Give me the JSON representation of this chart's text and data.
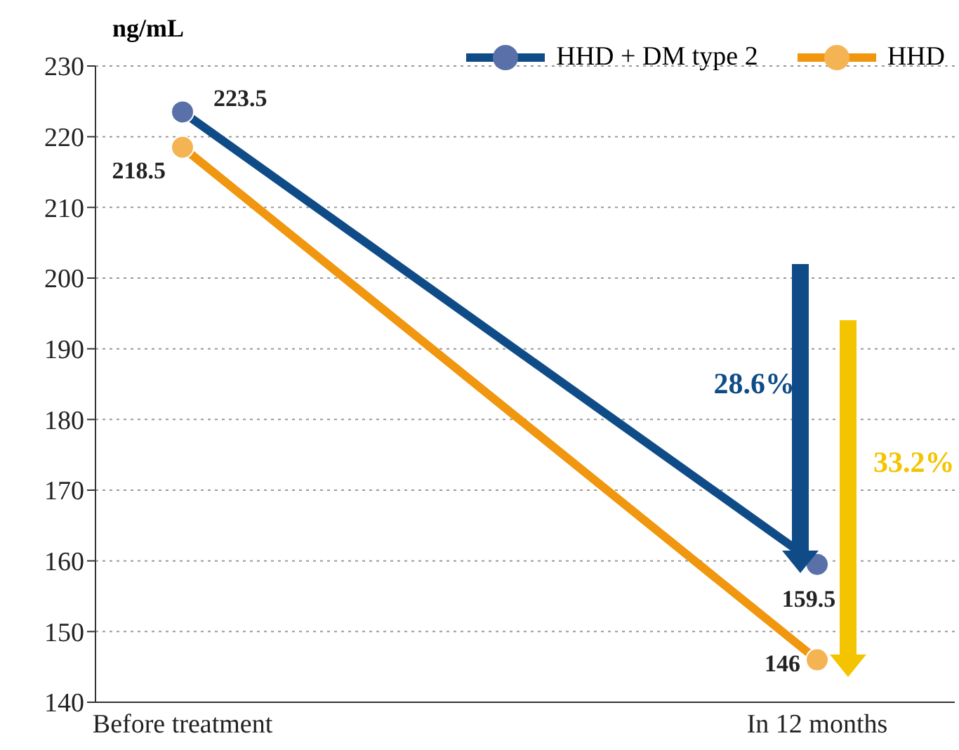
{
  "chart_data": {
    "type": "line",
    "ylabel": "ng/mL",
    "categories": [
      "Before treatment",
      "In 12 months"
    ],
    "series": [
      {
        "name": "HHD + DM type 2",
        "color": "#0f4c87",
        "values": [
          223.5,
          159.5
        ]
      },
      {
        "name": "HHD",
        "color": "#f0960f",
        "values": [
          218.5,
          146
        ]
      }
    ],
    "ylim": [
      140,
      230
    ],
    "yticks": [
      140,
      150,
      160,
      170,
      180,
      190,
      200,
      210,
      220,
      230
    ],
    "grid": "y",
    "legend": "top right",
    "marker": "circle",
    "line_style": "solid",
    "data_labels": true,
    "annotations": [
      "28.6%",
      "33.2%"
    ]
  }
}
